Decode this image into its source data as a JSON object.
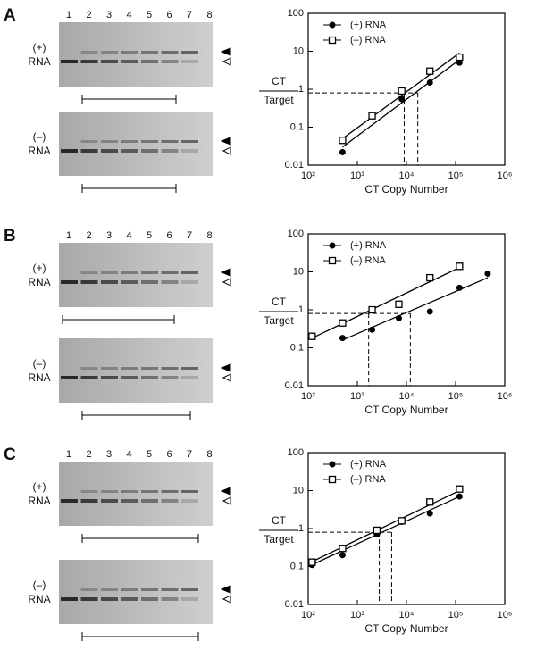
{
  "panels": [
    {
      "label": "A",
      "lane_numbers": [
        "1",
        "2",
        "3",
        "4",
        "5",
        "6",
        "7",
        "8"
      ],
      "gels": [
        {
          "strand": "(+)",
          "molecule": "RNA"
        },
        {
          "strand": "(–)",
          "molecule": "RNA"
        }
      ]
    },
    {
      "label": "B",
      "lane_numbers": [
        "1",
        "2",
        "3",
        "4",
        "5",
        "6",
        "7",
        "8"
      ],
      "gels": [
        {
          "strand": "(+)",
          "molecule": "RNA"
        },
        {
          "strand": "(–)",
          "molecule": "RNA"
        }
      ]
    },
    {
      "label": "C",
      "lane_numbers": [
        "1",
        "2",
        "3",
        "4",
        "5",
        "6",
        "7",
        "8"
      ],
      "gels": [
        {
          "strand": "(+)",
          "molecule": "RNA"
        },
        {
          "strand": "(–)",
          "molecule": "RNA"
        }
      ]
    }
  ],
  "chart_data": [
    {
      "type": "scatter",
      "y_label_top": "CT",
      "y_label_bottom": "Target",
      "x_label": "CT Copy Number",
      "log_x": true,
      "log_y": true,
      "xlim": [
        100,
        1000000
      ],
      "ylim": [
        0.01,
        100
      ],
      "xticks": [
        {
          "value": 100,
          "label": "10²"
        },
        {
          "value": 1000,
          "label": "10³"
        },
        {
          "value": 10000,
          "label": "10⁴"
        },
        {
          "value": 100000,
          "label": "10⁵"
        },
        {
          "value": 1000000,
          "label": "10⁶"
        }
      ],
      "yticks": [
        0.01,
        0.1,
        1,
        10,
        100
      ],
      "series": [
        {
          "name": "(+) RNA",
          "color": "#000000",
          "marker": "circle",
          "x": [
            500,
            8000,
            30000,
            120000
          ],
          "values": [
            0.022,
            0.55,
            1.5,
            5
          ]
        },
        {
          "name": "(–) RNA",
          "color": "#000000",
          "marker": "square",
          "x": [
            500,
            2000,
            8000,
            30000,
            120000
          ],
          "values": [
            0.045,
            0.2,
            0.9,
            3,
            7
          ]
        }
      ],
      "fits": [
        {
          "x": [
            500,
            120000
          ],
          "values": [
            0.03,
            6
          ]
        },
        {
          "x": [
            500,
            120000
          ],
          "values": [
            0.05,
            9
          ]
        }
      ],
      "threshold": {
        "y": 0.8,
        "x": [
          9000,
          17000
        ]
      }
    },
    {
      "type": "scatter",
      "y_label_top": "CT",
      "y_label_bottom": "Target",
      "x_label": "CT Copy Number",
      "log_x": true,
      "log_y": true,
      "xlim": [
        100,
        1000000
      ],
      "ylim": [
        0.01,
        100
      ],
      "xticks": [
        {
          "value": 100,
          "label": "10²"
        },
        {
          "value": 1000,
          "label": "10³"
        },
        {
          "value": 10000,
          "label": "10⁴"
        },
        {
          "value": 100000,
          "label": "10⁵"
        },
        {
          "value": 1000000,
          "label": "10⁶"
        }
      ],
      "yticks": [
        0.01,
        0.1,
        1,
        10,
        100
      ],
      "series": [
        {
          "name": "(+) RNA",
          "color": "#000000",
          "marker": "circle",
          "x": [
            500,
            2000,
            7000,
            30000,
            120000,
            450000
          ],
          "values": [
            0.18,
            0.3,
            0.6,
            0.9,
            3.8,
            9
          ]
        },
        {
          "name": "(–) RNA",
          "color": "#000000",
          "marker": "square",
          "x": [
            120,
            500,
            2000,
            7000,
            30000,
            120000
          ],
          "values": [
            0.2,
            0.45,
            1.0,
            1.4,
            7,
            14
          ]
        }
      ],
      "fits": [
        {
          "x": [
            500,
            450000
          ],
          "values": [
            0.16,
            7
          ]
        },
        {
          "x": [
            120,
            120000
          ],
          "values": [
            0.18,
            13
          ]
        }
      ],
      "threshold": {
        "y": 0.8,
        "x": [
          1700,
          12000
        ]
      }
    },
    {
      "type": "scatter",
      "y_label_top": "CT",
      "y_label_bottom": "Target",
      "x_label": "CT Copy Number",
      "log_x": true,
      "log_y": true,
      "xlim": [
        100,
        1000000
      ],
      "ylim": [
        0.01,
        100
      ],
      "xticks": [
        {
          "value": 100,
          "label": "10²"
        },
        {
          "value": 1000,
          "label": "10³"
        },
        {
          "value": 10000,
          "label": "10⁴"
        },
        {
          "value": 100000,
          "label": "10⁵"
        },
        {
          "value": 1000000,
          "label": "10⁶"
        }
      ],
      "yticks": [
        0.01,
        0.1,
        1,
        10,
        100
      ],
      "series": [
        {
          "name": "(+) RNA",
          "color": "#000000",
          "marker": "circle",
          "x": [
            120,
            500,
            2500,
            8000,
            30000,
            120000
          ],
          "values": [
            0.11,
            0.2,
            0.7,
            1.5,
            2.5,
            7
          ]
        },
        {
          "name": "(–) RNA",
          "color": "#000000",
          "marker": "square",
          "x": [
            120,
            500,
            2500,
            8000,
            30000,
            120000
          ],
          "values": [
            0.13,
            0.3,
            0.9,
            1.6,
            5,
            11
          ]
        }
      ],
      "fits": [
        {
          "x": [
            100,
            120000
          ],
          "values": [
            0.1,
            7
          ]
        },
        {
          "x": [
            100,
            120000
          ],
          "values": [
            0.12,
            10
          ]
        }
      ],
      "threshold": {
        "y": 0.8,
        "x": [
          2800,
          5000
        ]
      }
    }
  ]
}
